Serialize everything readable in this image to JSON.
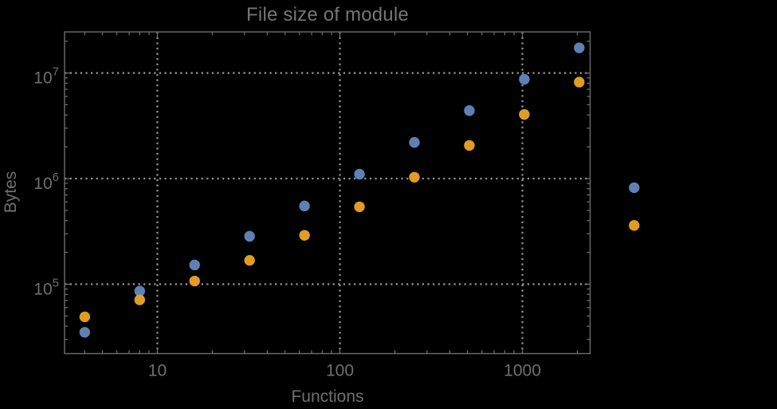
{
  "chart_data": {
    "type": "scatter",
    "title": "File size of module",
    "xlabel": "Functions",
    "ylabel": "Bytes",
    "xscale": "log",
    "yscale": "log",
    "xlim": [
      3.1,
      2350
    ],
    "ylim": [
      22000,
      24500000
    ],
    "grid": "dotted lines at decade ticks, framed plot, no legend",
    "legend_position": "none",
    "x_ticks": {
      "values": [
        10,
        100,
        1000
      ],
      "labels": [
        "10",
        "100",
        "1000"
      ]
    },
    "y_ticks": {
      "values": [
        100000,
        1000000,
        10000000
      ],
      "base": "10",
      "exponents": [
        "5",
        "6",
        "7"
      ]
    },
    "x": [
      4,
      8,
      16,
      32,
      64,
      128,
      256,
      512,
      1024,
      2048,
      4096
    ],
    "series": [
      {
        "name": "blue-series",
        "color": "#5e81b5",
        "values": [
          35000,
          86000,
          152000,
          284000,
          550000,
          1100000,
          2200000,
          4400000,
          8700000,
          17300000,
          820000
        ]
      },
      {
        "name": "orange-series",
        "color": "#e19c24",
        "values": [
          49000,
          71000,
          107000,
          168000,
          290000,
          540000,
          1030000,
          2060000,
          4050000,
          8200000,
          360000
        ]
      }
    ],
    "colors": {
      "background": "#000000",
      "frame": "#6e6e6e",
      "grid": "#8f8f8f",
      "text": "#6f6f6f"
    }
  }
}
